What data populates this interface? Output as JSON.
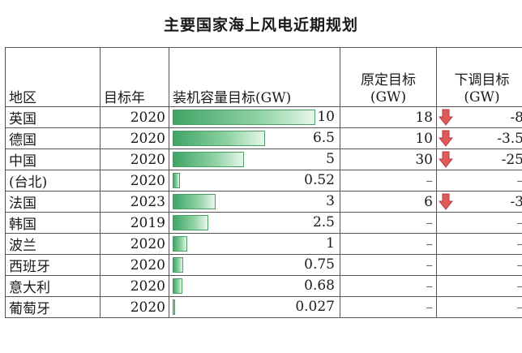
{
  "title": "主要国家海上风电近期规划",
  "headers": {
    "region": "地区",
    "year": "目标年",
    "target": "装机容量目标(GW)",
    "original_line1": "原定目标",
    "original_line2": "(GW)",
    "downward_line1": "下调目标",
    "downward_line2": "(GW)"
  },
  "max_target": 10,
  "rows": [
    {
      "region": "英国",
      "year": "2020",
      "target": "10",
      "target_value": 10,
      "original": "18",
      "downward": "-8",
      "arrow": true
    },
    {
      "region": "德国",
      "year": "2020",
      "target": "6.5",
      "target_value": 6.5,
      "original": "10",
      "downward": "-3.5",
      "arrow": true
    },
    {
      "region": "中国",
      "year": "2020",
      "target": "5",
      "target_value": 5,
      "original": "30",
      "downward": "-25",
      "arrow": true
    },
    {
      "region": "(台北)",
      "year": "2020",
      "target": "0.52",
      "target_value": 0.52,
      "original": "–",
      "downward": "–",
      "arrow": false
    },
    {
      "region": "法国",
      "year": "2023",
      "target": "3",
      "target_value": 3,
      "original": "6",
      "downward": "-3",
      "arrow": true
    },
    {
      "region": "韩国",
      "year": "2019",
      "target": "2.5",
      "target_value": 2.5,
      "original": "–",
      "downward": "–",
      "arrow": false
    },
    {
      "region": "波兰",
      "year": "2020",
      "target": "1",
      "target_value": 1,
      "original": "–",
      "downward": "–",
      "arrow": false
    },
    {
      "region": "西班牙",
      "year": "2020",
      "target": "0.75",
      "target_value": 0.75,
      "original": "–",
      "downward": "–",
      "arrow": false
    },
    {
      "region": "意大利",
      "year": "2020",
      "target": "0.68",
      "target_value": 0.68,
      "original": "–",
      "downward": "–",
      "arrow": false
    },
    {
      "region": "葡萄牙",
      "year": "2020",
      "target": "0.027",
      "target_value": 0.027,
      "original": "–",
      "downward": "–",
      "arrow": false
    }
  ],
  "colors": {
    "bar": "#3ea566",
    "arrow": "#e05a5a"
  }
}
